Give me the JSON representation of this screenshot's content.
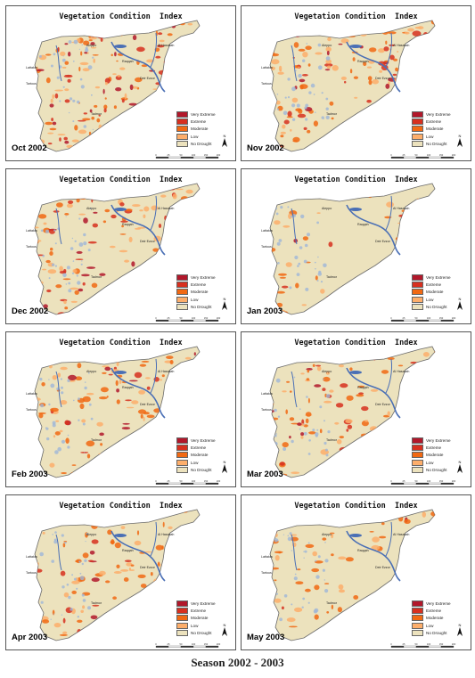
{
  "map_title": "Vegetation Condition  Index",
  "panels": [
    {
      "month": "Oct 2002",
      "severity": 0.9,
      "pattern": "widespread"
    },
    {
      "month": "Nov 2002",
      "severity": 0.75,
      "pattern": "north-central"
    },
    {
      "month": "Dec 2002",
      "severity": 0.8,
      "pattern": "north-west"
    },
    {
      "month": "Jan 2003",
      "severity": 0.35,
      "pattern": "west"
    },
    {
      "month": "Feb 2003",
      "severity": 0.5,
      "pattern": "scattered"
    },
    {
      "month": "Mar 2003",
      "severity": 0.45,
      "pattern": "scattered"
    },
    {
      "month": "Apr 2003",
      "severity": 0.3,
      "pattern": "scattered"
    },
    {
      "month": "May 2003",
      "severity": 0.25,
      "pattern": "scattered"
    }
  ],
  "legend": [
    {
      "label": "Very Extreme",
      "color": "#b2182b"
    },
    {
      "label": "Extreme",
      "color": "#d7301f"
    },
    {
      "label": "Moderate",
      "color": "#f16913"
    },
    {
      "label": "Low",
      "color": "#fdae6b"
    },
    {
      "label": "No Drought",
      "color": "#ece2bd"
    }
  ],
  "place_labels": [
    "Lattakia",
    "Tartous",
    "Tadmor",
    "Deir Ezzor",
    "Al Hasakah",
    "Raqqah",
    "Aleppo"
  ],
  "scale_labels": [
    "0",
    "25",
    "50",
    "100",
    "150",
    "200"
  ],
  "north_label": "N",
  "water_color": "#4a6fb5",
  "season_caption": "Season 2002 - 2003"
}
